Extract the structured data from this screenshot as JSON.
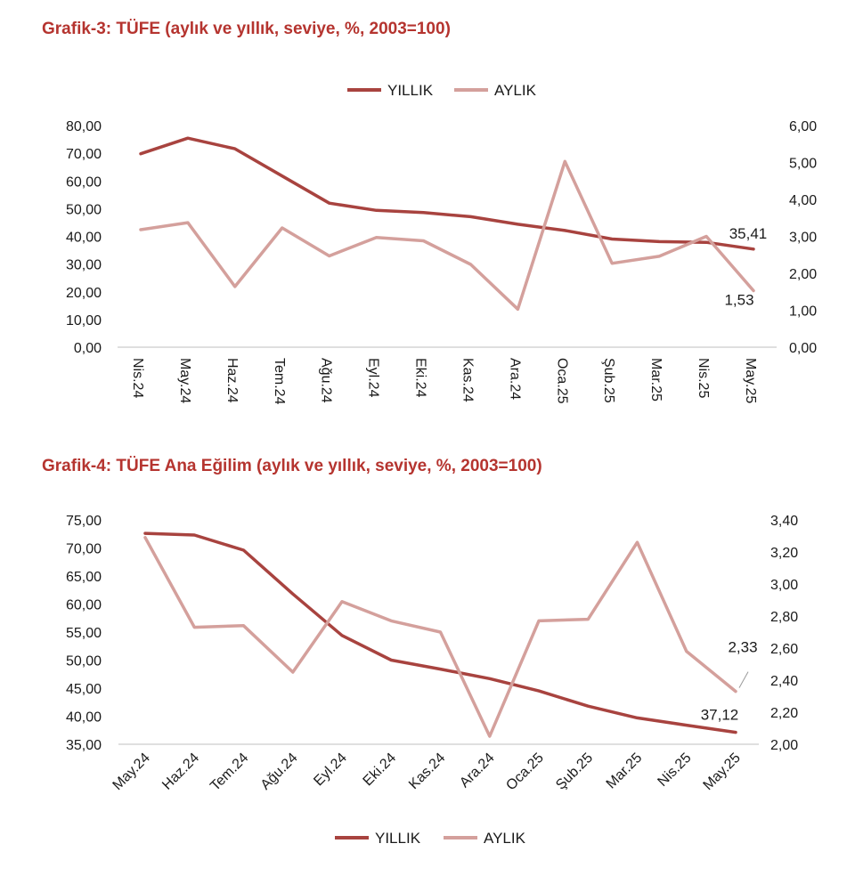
{
  "chart_data": [
    {
      "type": "line",
      "title": "Grafik-3: TÜFE (aylık ve yıllık, seviye, %, 2003=100)",
      "categories": [
        "Nis.24",
        "May.24",
        "Haz.24",
        "Tem.24",
        "Ağu.24",
        "Eyl.24",
        "Eki.24",
        "Kas.24",
        "Ara.24",
        "Oca.25",
        "Şub.25",
        "Mar.25",
        "Nis.25",
        "May.25"
      ],
      "series": [
        {
          "name": "YILLIK",
          "axis": "left",
          "color": "#a8433f",
          "values": [
            69.8,
            75.45,
            71.6,
            61.78,
            51.97,
            49.38,
            48.58,
            47.09,
            44.38,
            42.12,
            39.05,
            38.1,
            37.86,
            35.41
          ]
        },
        {
          "name": "AYLIK",
          "axis": "right",
          "color": "#d4a09c",
          "values": [
            3.18,
            3.37,
            1.64,
            3.23,
            2.47,
            2.97,
            2.88,
            2.24,
            1.03,
            5.03,
            2.27,
            2.46,
            3.0,
            1.53
          ]
        }
      ],
      "y_left": {
        "min": 0,
        "max": 80,
        "step": 10,
        "ticks": [
          "0,00",
          "10,00",
          "20,00",
          "30,00",
          "40,00",
          "50,00",
          "60,00",
          "70,00",
          "80,00"
        ]
      },
      "y_right": {
        "min": 0,
        "max": 6,
        "step": 1,
        "ticks": [
          "0,00",
          "1,00",
          "2,00",
          "3,00",
          "4,00",
          "5,00",
          "6,00"
        ]
      },
      "legend": {
        "placement": "top-center",
        "items": [
          "YILLIK",
          "AYLIK"
        ]
      },
      "data_labels": [
        {
          "series": "YILLIK",
          "index": 13,
          "text": "35,41"
        },
        {
          "series": "AYLIK",
          "index": 13,
          "text": "1,53"
        }
      ],
      "grid": false
    },
    {
      "type": "line",
      "title": "Grafik-4: TÜFE Ana Eğilim (aylık ve yıllık, seviye, %, 2003=100)",
      "categories": [
        "May.24",
        "Haz.24",
        "Tem.24",
        "Ağu.24",
        "Eyl.24",
        "Eki.24",
        "Kas.24",
        "Ara.24",
        "Oca.25",
        "Şub.25",
        "Mar.25",
        "Nis.25",
        "May.25"
      ],
      "series": [
        {
          "name": "YILLIK",
          "axis": "left",
          "color": "#a8433f",
          "values": [
            72.6,
            72.3,
            69.6,
            61.8,
            54.4,
            50.0,
            48.4,
            46.7,
            44.5,
            41.8,
            39.7,
            38.4,
            37.12
          ]
        },
        {
          "name": "AYLIK",
          "axis": "right",
          "color": "#d4a09c",
          "values": [
            3.29,
            2.73,
            2.74,
            2.45,
            2.89,
            2.77,
            2.7,
            2.05,
            2.77,
            2.78,
            3.26,
            2.58,
            2.33
          ]
        }
      ],
      "y_left": {
        "min": 35,
        "max": 75,
        "step": 5,
        "ticks": [
          "35,00",
          "40,00",
          "45,00",
          "50,00",
          "55,00",
          "60,00",
          "65,00",
          "70,00",
          "75,00"
        ]
      },
      "y_right": {
        "min": 2.0,
        "max": 3.4,
        "step": 0.2,
        "ticks": [
          "2,00",
          "2,20",
          "2,40",
          "2,60",
          "2,80",
          "3,00",
          "3,20",
          "3,40"
        ]
      },
      "legend": {
        "placement": "bottom-center",
        "items": [
          "YILLIK",
          "AYLIK"
        ]
      },
      "data_labels": [
        {
          "series": "YILLIK",
          "index": 12,
          "text": "37,12"
        },
        {
          "series": "AYLIK",
          "index": 12,
          "text": "2,33"
        }
      ],
      "grid": false
    }
  ]
}
